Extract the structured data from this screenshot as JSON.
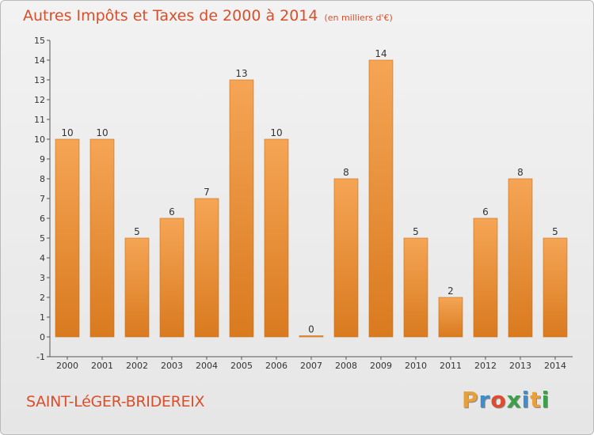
{
  "header": {
    "title": "Autres Impôts et Taxes de 2000 à 2014",
    "unit": "(en milliers d'€)"
  },
  "footer": {
    "commune": "SAINT-LéGER-BRIDEREIX",
    "brand": "Proxiti",
    "brand_colors": [
      "#e8a13a",
      "#3b8fd0",
      "#e04a2f",
      "#3aa14a",
      "#3b8fd0",
      "#e8a13a",
      "#3aa14a"
    ]
  },
  "chart_data": {
    "type": "bar",
    "categories": [
      "2000",
      "2001",
      "2002",
      "2003",
      "2004",
      "2005",
      "2006",
      "2007",
      "2008",
      "2009",
      "2010",
      "2011",
      "2012",
      "2013",
      "2014"
    ],
    "values": [
      10,
      10,
      5,
      6,
      7,
      13,
      10,
      0,
      8,
      14,
      5,
      2,
      6,
      8,
      5
    ],
    "y_ticks": [
      -1,
      0,
      1,
      2,
      3,
      4,
      5,
      6,
      7,
      8,
      9,
      10,
      11,
      12,
      13,
      14,
      15
    ],
    "ylim": [
      -1,
      15
    ],
    "grid": false,
    "bar_color_top": "#f5a555",
    "bar_color_bottom": "#d97a1f",
    "axis_color": "#555555",
    "label_color": "#333333"
  }
}
